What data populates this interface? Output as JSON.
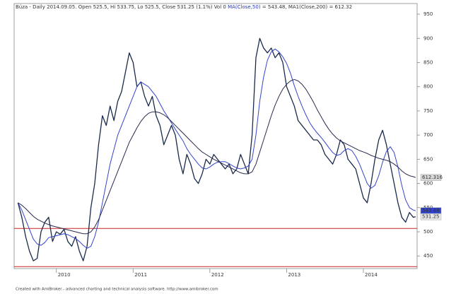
{
  "chart_data": {
    "type": "line",
    "title_parts": [
      "Búza - Daily 2014.09.05. Open 525.5, Hi 533.75, Lo 525.5, Close 531.25 (1.1%) Vol 0 ",
      "MA(Close,50)",
      " = 543.48, MA1(Close,200) = 612.32"
    ],
    "title_colors": [
      "#333333",
      "#2233cc",
      "#333333"
    ],
    "footer": "Created with AmiBroker - advanced charting and technical analysis software. http://www.amibroker.com",
    "x": [
      2009.5,
      2009.55,
      2009.6,
      2009.65,
      2009.7,
      2009.75,
      2009.8,
      2009.85,
      2009.9,
      2009.95,
      2010,
      2010.05,
      2010.1,
      2010.15,
      2010.2,
      2010.25,
      2010.3,
      2010.35,
      2010.4,
      2010.45,
      2010.5,
      2010.55,
      2010.6,
      2010.65,
      2010.7,
      2010.75,
      2010.8,
      2010.85,
      2010.9,
      2010.95,
      2011,
      2011.05,
      2011.1,
      2011.15,
      2011.2,
      2011.25,
      2011.3,
      2011.35,
      2011.4,
      2011.45,
      2011.5,
      2011.55,
      2011.6,
      2011.65,
      2011.7,
      2011.75,
      2011.8,
      2011.85,
      2011.9,
      2011.95,
      2012,
      2012.05,
      2012.1,
      2012.15,
      2012.2,
      2012.25,
      2012.3,
      2012.35,
      2012.4,
      2012.45,
      2012.5,
      2012.55,
      2012.6,
      2012.65,
      2012.7,
      2012.75,
      2012.8,
      2012.85,
      2012.9,
      2012.95,
      2013,
      2013.05,
      2013.1,
      2013.15,
      2013.2,
      2013.25,
      2013.3,
      2013.35,
      2013.4,
      2013.45,
      2013.5,
      2013.55,
      2013.6,
      2013.65,
      2013.7,
      2013.75,
      2013.8,
      2013.85,
      2013.9,
      2013.95,
      2014,
      2014.05,
      2014.1,
      2014.15,
      2014.2,
      2014.25,
      2014.3,
      2014.35,
      2014.4,
      2014.45,
      2014.5,
      2014.55,
      2014.6,
      2014.65,
      2014.68
    ],
    "series": [
      {
        "color": "#1a2a4a",
        "width": 1.3,
        "values": [
          560,
          530,
          490,
          460,
          440,
          445,
          500,
          520,
          530,
          480,
          500,
          495,
          505,
          480,
          470,
          490,
          460,
          440,
          470,
          550,
          600,
          680,
          740,
          720,
          760,
          730,
          770,
          790,
          830,
          870,
          850,
          800,
          810,
          780,
          760,
          780,
          740,
          720,
          680,
          700,
          720,
          700,
          650,
          620,
          660,
          640,
          610,
          600,
          620,
          650,
          640,
          660,
          650,
          640,
          630,
          640,
          620,
          630,
          660,
          640,
          620,
          700,
          860,
          900,
          880,
          870,
          880,
          860,
          870,
          850,
          800,
          780,
          760,
          730,
          720,
          710,
          700,
          690,
          690,
          680,
          660,
          650,
          640,
          660,
          690,
          680,
          650,
          640,
          630,
          600,
          570,
          560,
          600,
          650,
          690,
          710,
          680,
          640,
          600,
          560,
          530,
          520,
          540,
          530,
          531.25
        ]
      },
      {
        "color": "#3344cc",
        "width": 1,
        "values": [
          560,
          545,
          525,
          505,
          485,
          475,
          472,
          478,
          488,
          490,
          492,
          494,
          496,
          494,
          490,
          486,
          480,
          472,
          466,
          470,
          490,
          520,
          560,
          600,
          640,
          670,
          700,
          720,
          740,
          760,
          780,
          800,
          810,
          805,
          800,
          790,
          780,
          765,
          750,
          738,
          725,
          712,
          700,
          688,
          672,
          660,
          650,
          640,
          632,
          630,
          634,
          640,
          644,
          645,
          645,
          641,
          636,
          632,
          630,
          632,
          636,
          650,
          700,
          770,
          820,
          855,
          872,
          878,
          872,
          862,
          848,
          828,
          802,
          780,
          760,
          742,
          726,
          714,
          704,
          695,
          685,
          674,
          664,
          658,
          660,
          668,
          672,
          668,
          656,
          640,
          620,
          600,
          590,
          596,
          616,
          644,
          666,
          676,
          664,
          634,
          596,
          566,
          550,
          545,
          543.48
        ]
      },
      {
        "color": "#2a2a50",
        "width": 1,
        "values": [
          560,
          555,
          548,
          540,
          532,
          526,
          522,
          518,
          515,
          512,
          510,
          508,
          506,
          504,
          502,
          500,
          498,
          496,
          496,
          500,
          510,
          525,
          545,
          565,
          585,
          605,
          625,
          645,
          665,
          685,
          700,
          715,
          728,
          738,
          745,
          748,
          748,
          746,
          742,
          736,
          728,
          720,
          712,
          704,
          696,
          688,
          680,
          672,
          665,
          660,
          655,
          650,
          646,
          642,
          638,
          634,
          630,
          626,
          622,
          620,
          620,
          624,
          640,
          665,
          690,
          715,
          740,
          762,
          780,
          795,
          805,
          812,
          815,
          812,
          805,
          795,
          782,
          768,
          752,
          738,
          724,
          712,
          702,
          694,
          688,
          684,
          680,
          676,
          672,
          668,
          665,
          662,
          658,
          655,
          652,
          650,
          648,
          645,
          640,
          634,
          626,
          620,
          616,
          614,
          612.32
        ]
      }
    ],
    "hlines": [
      {
        "value": 507,
        "color": "#cc2222"
      },
      {
        "value": 428,
        "color": "#cc2222"
      }
    ],
    "annotations": [
      {
        "text": "612.316",
        "value": 612.316,
        "bg": "#d8d8d8",
        "fg": "#111111"
      },
      {
        "text": "543.48",
        "value": 543.48,
        "bg": "#3344cc",
        "fg": "#ffffff"
      },
      {
        "text": "531.25",
        "value": 531.25,
        "bg": "#e8e8e8",
        "fg": "#111111"
      }
    ],
    "xlim": [
      2009.45,
      2014.7
    ],
    "xticks": [
      2010,
      2011,
      2012,
      2013,
      2014
    ],
    "ylim": [
      424,
      972
    ],
    "yticks": [
      450,
      500,
      550,
      600,
      650,
      700,
      750,
      800,
      850,
      900,
      950
    ],
    "grid": false
  }
}
